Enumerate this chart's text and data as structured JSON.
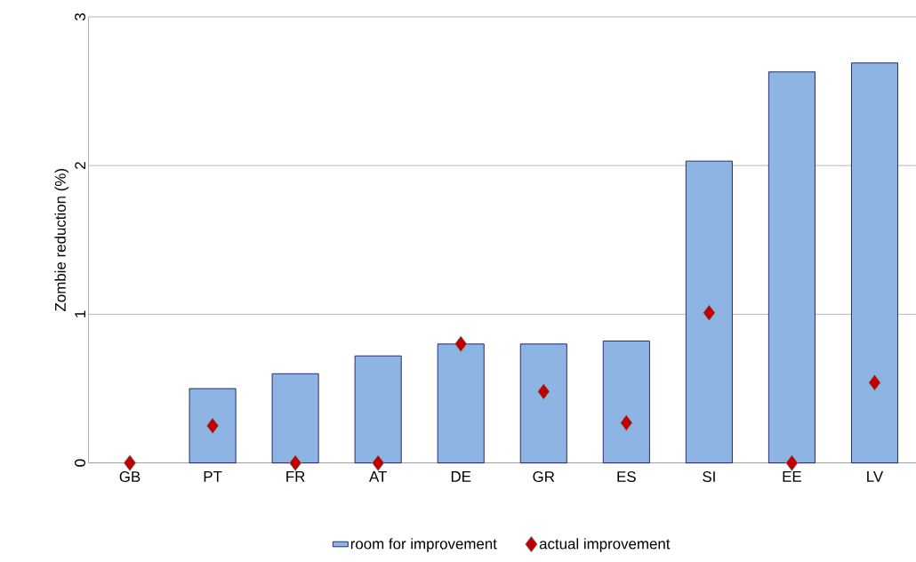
{
  "chart_data": {
    "type": "bar",
    "ylabel": "Zombie reduction (%)",
    "categories": [
      "GB",
      "PT",
      "FR",
      "AT",
      "DE",
      "GR",
      "ES",
      "SI",
      "EE",
      "LV"
    ],
    "series": [
      {
        "name": "room for improvement",
        "color": "#8db4e2",
        "values": [
          null,
          0.5,
          0.6,
          0.72,
          0.8,
          0.8,
          0.82,
          2.03,
          2.63,
          2.69
        ]
      },
      {
        "name": "actual improvement",
        "type": "scatter",
        "color": "#c00000",
        "marker": "diamond",
        "values": [
          0,
          0.25,
          0,
          0,
          0.8,
          0.48,
          0.27,
          1.01,
          0,
          0.54
        ]
      }
    ],
    "ylim": [
      0,
      3
    ],
    "yticks": [
      0,
      1,
      2,
      3
    ],
    "grid": "y",
    "legend": "bottom"
  }
}
